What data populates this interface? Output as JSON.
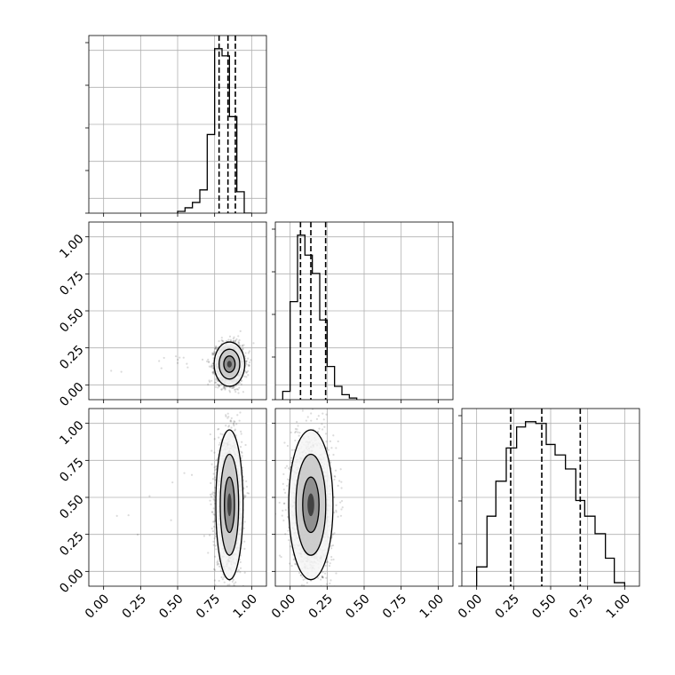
{
  "chart_data": {
    "type": "corner",
    "title": "",
    "parameters": [
      "",
      "",
      ""
    ],
    "range": [
      0,
      1
    ],
    "ticks": [
      "0.00",
      "0.25",
      "0.50",
      "0.75",
      "1.00"
    ],
    "grid": true,
    "hist_color": "#000000",
    "quantile_line_style": "dashed",
    "histograms": [
      {
        "parameter_index": 0,
        "bins": [
          0.5,
          0.55,
          0.6,
          0.65,
          0.7,
          0.75,
          0.8,
          0.85,
          0.9,
          0.95,
          1.0
        ],
        "counts": [
          0.01,
          0.03,
          0.06,
          0.13,
          0.44,
          0.92,
          0.88,
          0.54,
          0.12,
          0.0
        ],
        "quantiles": [
          0.78,
          0.84,
          0.89
        ]
      },
      {
        "parameter_index": 1,
        "bins": [
          -0.05,
          0.0,
          0.05,
          0.1,
          0.15,
          0.2,
          0.25,
          0.3,
          0.35,
          0.4,
          0.45
        ],
        "counts": [
          0.05,
          0.59,
          0.99,
          0.87,
          0.76,
          0.48,
          0.2,
          0.08,
          0.03,
          0.01
        ],
        "quantiles": [
          0.07,
          0.14,
          0.24
        ]
      },
      {
        "parameter_index": 2,
        "bins": [
          0.0,
          0.07,
          0.13,
          0.2,
          0.27,
          0.33,
          0.4,
          0.47,
          0.53,
          0.6,
          0.67,
          0.73,
          0.8,
          0.87,
          0.93,
          1.0
        ],
        "counts": [
          0.11,
          0.4,
          0.6,
          0.79,
          0.91,
          0.94,
          0.93,
          0.81,
          0.75,
          0.67,
          0.49,
          0.4,
          0.3,
          0.16,
          0.02
        ],
        "quantiles": [
          0.23,
          0.44,
          0.7
        ]
      }
    ],
    "scatter_panels": [
      {
        "x_parameter": 0,
        "y_parameter": 1,
        "center": [
          0.85,
          0.14
        ],
        "spread": [
          0.045,
          0.065
        ],
        "contour_levels": [
          0.06,
          0.12,
          0.25
        ]
      },
      {
        "x_parameter": 0,
        "y_parameter": 2,
        "center": [
          0.85,
          0.45
        ],
        "spread": [
          0.04,
          0.22
        ],
        "contour_levels": [
          0.055,
          0.13,
          0.24
        ]
      },
      {
        "x_parameter": 1,
        "y_parameter": 2,
        "center": [
          0.14,
          0.45
        ],
        "spread": [
          0.065,
          0.22
        ],
        "contour_levels": [
          0.07,
          0.15,
          0.28
        ]
      }
    ]
  }
}
